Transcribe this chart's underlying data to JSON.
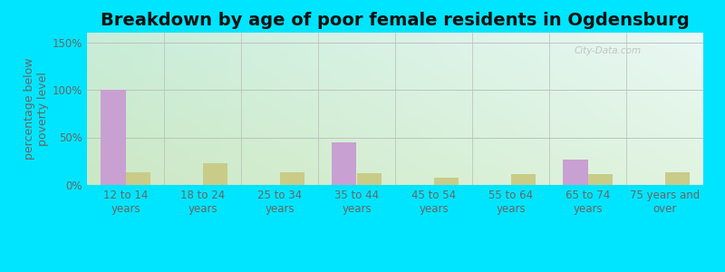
{
  "title": "Breakdown by age of poor female residents in Ogdensburg",
  "ylabel": "percentage below\npoverty level",
  "categories": [
    "12 to 14\nyears",
    "18 to 24\nyears",
    "25 to 34\nyears",
    "35 to 44\nyears",
    "45 to 54\nyears",
    "55 to 64\nyears",
    "65 to 74\nyears",
    "75 years and\nover"
  ],
  "ogdensburg_values": [
    100,
    0,
    0,
    45,
    0,
    0,
    27,
    0
  ],
  "wisconsin_values": [
    13,
    23,
    13,
    12,
    8,
    11,
    11,
    13
  ],
  "ogdensburg_color": "#c8a0d2",
  "wisconsin_color": "#c8cc88",
  "ylim": [
    0,
    160
  ],
  "yticks": [
    0,
    50,
    100,
    150
  ],
  "ytick_labels": [
    "0%",
    "50%",
    "100%",
    "150%"
  ],
  "bar_width": 0.32,
  "title_fontsize": 14,
  "axis_fontsize": 9,
  "tick_fontsize": 8.5,
  "legend_fontsize": 10,
  "watermark_text": "City-Data.com",
  "outer_bg": "#00e5ff",
  "plot_bg_topleft": "#c8edd8",
  "plot_bg_topright": "#e8f8f0",
  "plot_bg_bottomleft": "#d8eec8",
  "plot_bg_bottomright": "#e8f8e0"
}
